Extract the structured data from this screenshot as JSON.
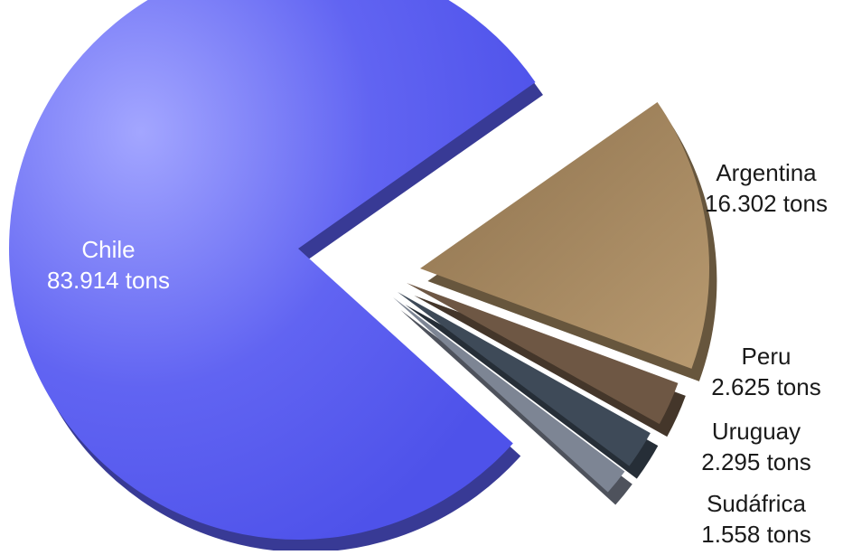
{
  "chart_data": {
    "type": "pie",
    "title": "",
    "unit": "tons",
    "slices": [
      {
        "label": "Chile",
        "value": 83.914,
        "value_text": "83.914 tons",
        "color": "#5b5ef0",
        "label_color": "#ffffff",
        "exploded": false
      },
      {
        "label": "Argentina",
        "value": 16.302,
        "value_text": "16.302 tons",
        "color": "#a68a63",
        "label_color": "#1a1a1a",
        "exploded": true
      },
      {
        "label": "Peru",
        "value": 2.625,
        "value_text": "2.625 tons",
        "color": "#6e5744",
        "label_color": "#1a1a1a",
        "exploded": true
      },
      {
        "label": "Uruguay",
        "value": 2.295,
        "value_text": "2.295 tons",
        "color": "#3e4a58",
        "label_color": "#1a1a1a",
        "exploded": true
      },
      {
        "label": "Sudáfrica",
        "value": 1.558,
        "value_text": "1.558 tons",
        "color": "#7d8594",
        "label_color": "#1a1a1a",
        "exploded": true
      }
    ],
    "style": "3d-exploded",
    "legend": "none"
  }
}
